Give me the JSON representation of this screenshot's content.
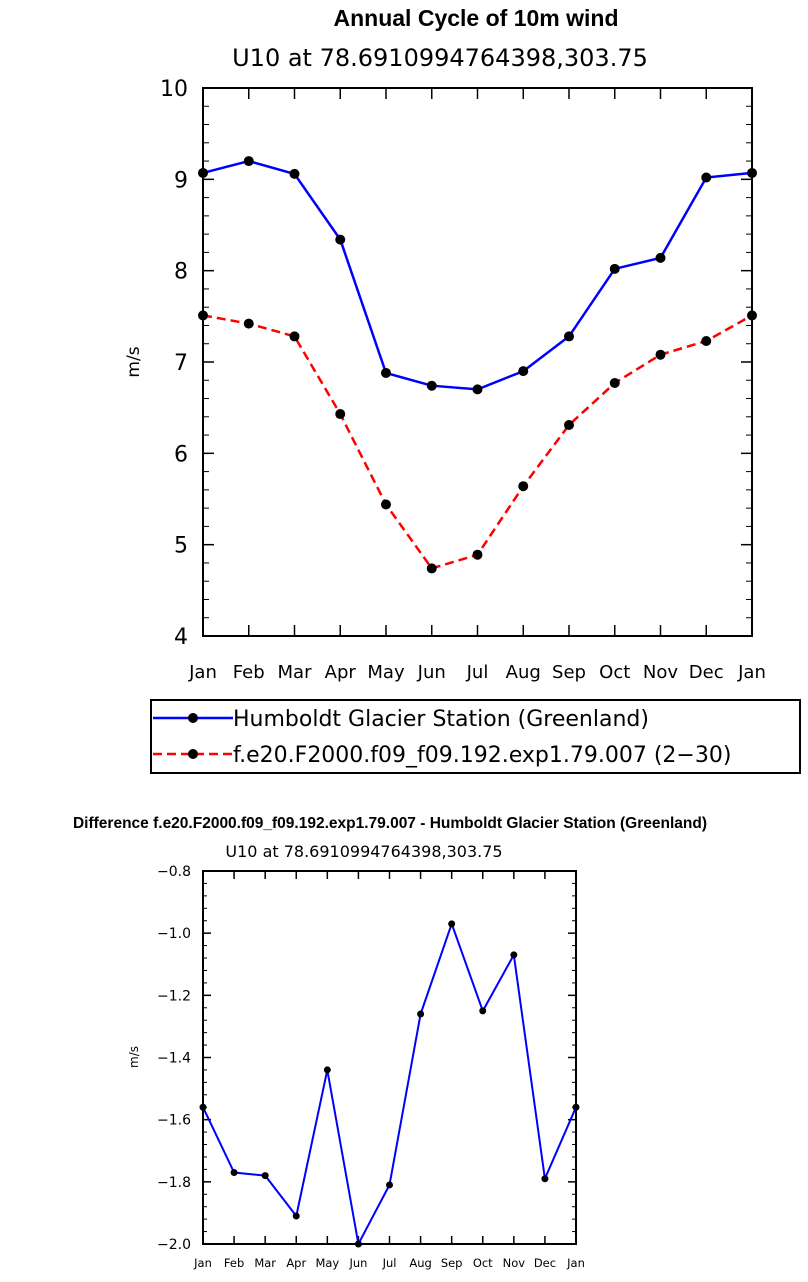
{
  "chart_data": [
    {
      "type": "line",
      "title": "Annual Cycle of 10m wind",
      "subtitle": "U10 at 78.6910994764398,303.75",
      "ylabel": "m/s",
      "xlabel": "",
      "categories": [
        "Jan",
        "Feb",
        "Mar",
        "Apr",
        "May",
        "Jun",
        "Jul",
        "Aug",
        "Sep",
        "Oct",
        "Nov",
        "Dec",
        "Jan"
      ],
      "ylim": [
        4,
        10
      ],
      "yticks": [
        "4",
        "5",
        "6",
        "7",
        "8",
        "9",
        "10"
      ],
      "legend_placement": "below",
      "series": [
        {
          "name": "Humboldt Glacier Station (Greenland)",
          "color": "#0000ff",
          "dash": "solid",
          "marker": "dot",
          "values": [
            9.07,
            9.2,
            9.06,
            8.34,
            6.88,
            6.74,
            6.7,
            6.9,
            7.28,
            8.02,
            8.14,
            9.02,
            9.07
          ]
        },
        {
          "name": "f.e20.F2000.f09_f09.192.exp1.79.007 (2−30)",
          "color": "#ff0000",
          "dash": "dashed",
          "marker": "dot",
          "values": [
            7.51,
            7.42,
            7.28,
            6.43,
            5.44,
            4.74,
            4.89,
            5.64,
            6.31,
            6.77,
            7.08,
            7.23,
            7.51
          ]
        }
      ]
    },
    {
      "type": "line",
      "title": "Difference f.e20.F2000.f09_f09.192.exp1.79.007 - Humboldt Glacier Station (Greenland)",
      "subtitle": "U10 at 78.6910994764398,303.75",
      "ylabel": "m/s",
      "xlabel": "",
      "categories": [
        "Jan",
        "Feb",
        "Mar",
        "Apr",
        "May",
        "Jun",
        "Jul",
        "Aug",
        "Sep",
        "Oct",
        "Nov",
        "Dec",
        "Jan"
      ],
      "ylim": [
        -2.0,
        -0.8
      ],
      "yticks": [
        "−2.0",
        "−1.8",
        "−1.6",
        "−1.4",
        "−1.2",
        "−1.0",
        "−0.8"
      ],
      "series": [
        {
          "color": "#0000ff",
          "dash": "solid",
          "marker": "dot",
          "values": [
            -1.56,
            -1.77,
            -1.78,
            -1.91,
            -1.44,
            -2.0,
            -1.81,
            -1.26,
            -0.97,
            -1.25,
            -1.07,
            -1.79,
            -1.56
          ]
        }
      ]
    }
  ]
}
